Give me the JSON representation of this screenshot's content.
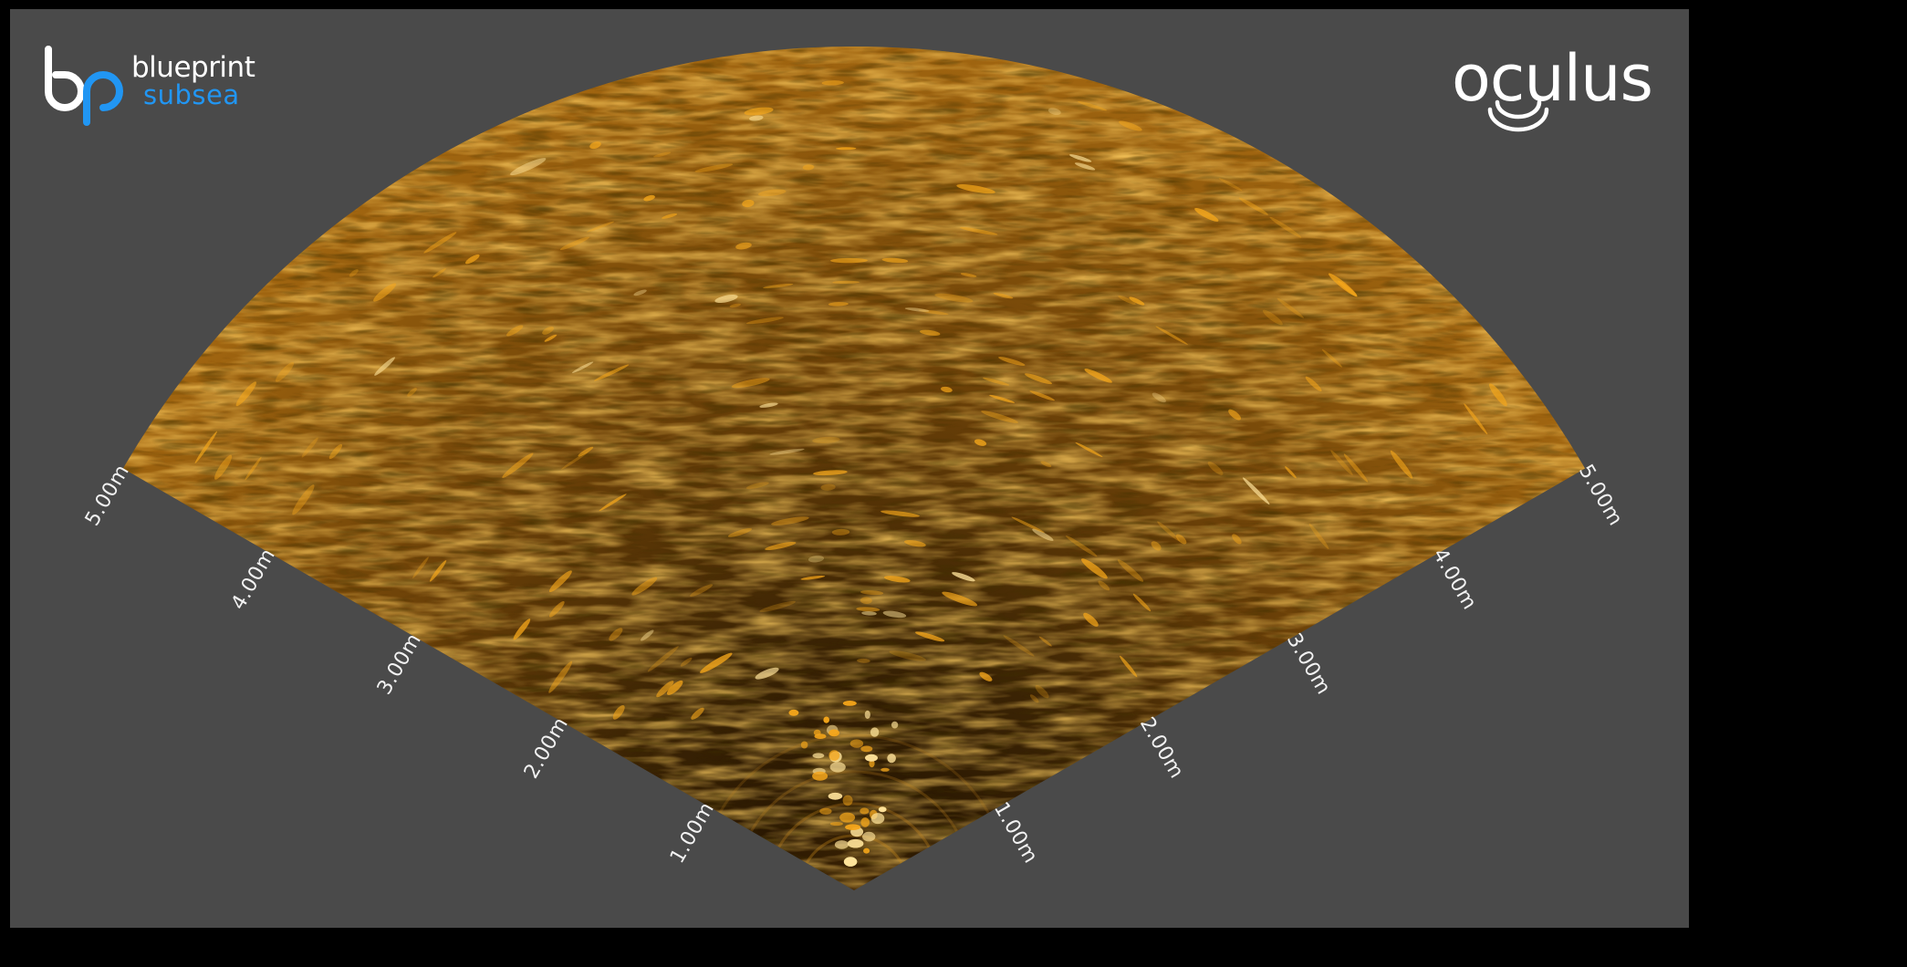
{
  "logos": {
    "left": {
      "word_top": "blueprint",
      "word_bottom": "subsea"
    },
    "right": {
      "word": "oculus"
    }
  },
  "sonar": {
    "max_range_m": 5.0,
    "left_range_labels": [
      "1.00m",
      "2.00m",
      "3.00m",
      "4.00m",
      "5.00m"
    ],
    "right_range_labels": [
      "1.00m",
      "2.00m",
      "3.00m",
      "4.00m",
      "5.00m"
    ],
    "palette": {
      "dark": "#140c00",
      "mid": "#6e4405",
      "bright": "#f5a61a",
      "highlight": "#ffe39a"
    }
  },
  "colors": {
    "background": "#000000",
    "viewer_bg": "#4a4a4a",
    "brand_blue": "#2196f3",
    "label_text": "#f2f2f2"
  }
}
